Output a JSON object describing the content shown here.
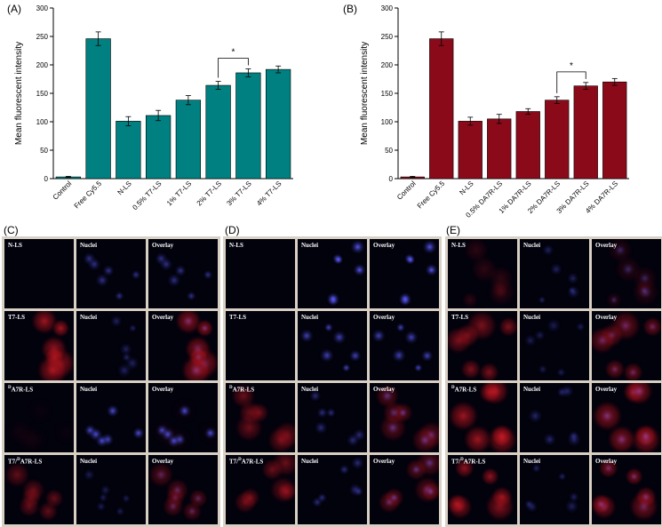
{
  "panels": {
    "A": "(A)",
    "B": "(B)",
    "C": "(C)",
    "D": "(D)",
    "E": "(E)"
  },
  "chart_data": [
    {
      "type": "bar",
      "panel": "(A)",
      "categories": [
        "Control",
        "Free Cy5.5",
        "N-LS",
        "0.5% T7-LS",
        "1% T7-LS",
        "2% T7-LS",
        "3% T7-LS",
        "4% T7-LS"
      ],
      "values": [
        3,
        246,
        101,
        111,
        138,
        164,
        186,
        192
      ],
      "errors": [
        1,
        12,
        8,
        9,
        8,
        7,
        7,
        6
      ],
      "ylabel": "Mean fluorescent intensity",
      "ylim": [
        0,
        300
      ],
      "yticks": [
        0,
        50,
        100,
        150,
        200,
        250,
        300
      ],
      "color": "#008080",
      "significance": {
        "from": 5,
        "to": 6,
        "label": "*"
      }
    },
    {
      "type": "bar",
      "panel": "(B)",
      "categories": [
        "Control",
        "Free Cy5.5",
        "N-LS",
        "0.5% DA7R-LS",
        "1% DA7R-LS",
        "2% DA7R-LS",
        "3% DA7R-LS",
        "4% DA7R-LS"
      ],
      "values": [
        3,
        246,
        101,
        105,
        118,
        138,
        163,
        170
      ],
      "errors": [
        1,
        12,
        7,
        8,
        5,
        6,
        6,
        6
      ],
      "ylabel": "Mean fluorescent intensity",
      "ylim": [
        0,
        300
      ],
      "yticks": [
        0,
        50,
        100,
        150,
        200,
        250,
        300
      ],
      "color": "#8b0a1a",
      "significance": {
        "from": 5,
        "to": 6,
        "label": "*"
      }
    }
  ],
  "micrographs": {
    "row_labels": [
      "N-LS",
      "T7-LS",
      "DA7R-LS",
      "T7/DA7R-LS"
    ],
    "row_label_prefix": [
      "",
      "",
      "D",
      "T7/D"
    ],
    "row_label_rest": [
      "N-LS",
      "T7-LS",
      "A7R-LS",
      "A7R-LS"
    ],
    "col_labels": [
      "",
      "Nuclei",
      "Overlay"
    ],
    "groups": [
      {
        "panel": "(C)",
        "rows": [
          {
            "red": 0,
            "blue": 0.5
          },
          {
            "red": 0.9,
            "blue": 0.35
          },
          {
            "red": 0.05,
            "blue": 0.8
          },
          {
            "red": 0.55,
            "blue": 0.3
          }
        ]
      },
      {
        "panel": "(D)",
        "rows": [
          {
            "red": 0,
            "blue": 0.9
          },
          {
            "red": 0,
            "blue": 0.7
          },
          {
            "red": 0.6,
            "blue": 0.45
          },
          {
            "red": 0.6,
            "blue": 0.45
          }
        ]
      },
      {
        "panel": "(E)",
        "rows": [
          {
            "red": 0.25,
            "blue": 0.35
          },
          {
            "red": 0.7,
            "blue": 0.3
          },
          {
            "red": 0.9,
            "blue": 0.4
          },
          {
            "red": 0.8,
            "blue": 0.35
          }
        ]
      }
    ]
  }
}
